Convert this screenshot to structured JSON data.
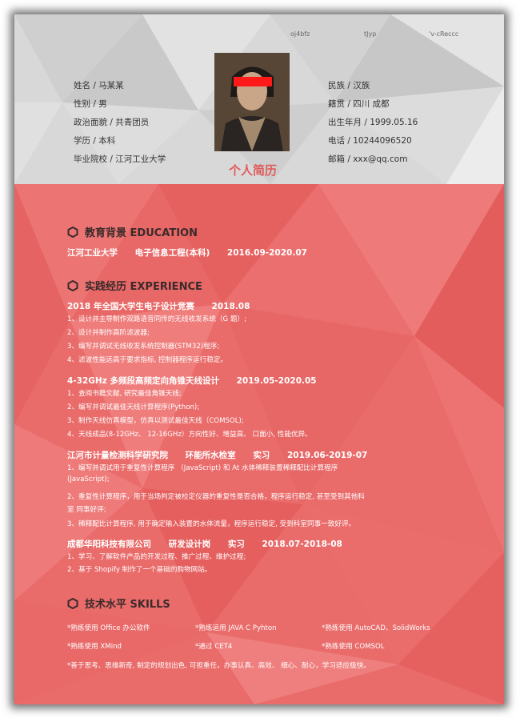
{
  "top_codes": [
    "oj4bfz",
    "tJyp",
    "'v-cReccc"
  ],
  "left_info": [
    "姓名 / 马某某",
    "性别 / 男",
    "政治面貌 / 共青团员",
    "学历 / 本科",
    "毕业院校 / 江河工业大学"
  ],
  "right_info": [
    "民族 / 汉族",
    "籍贯 / 四川 成都",
    "出生年月 / 1999.05.16",
    "电话 / 10244096520",
    "邮箱 / xxx@qq.com"
  ],
  "title": "个人简历",
  "sections": {
    "education": "教育背景 EDUCATION",
    "experience": "实践经历 EXPERIENCE",
    "skills": "技术水平 SKILLS"
  },
  "education": {
    "school": "江河工业大学",
    "major": "电子信息工程(本科)",
    "period": "2016.09-2020.07"
  },
  "exp1": {
    "title": "2018 年全国大学生电子设计竞赛",
    "date": "2018.08",
    "lines": [
      "1、设计并主导制作双路语音同传的无线收发系统（G 题）;",
      "2、设计并制作高阶滤波器;",
      "3、编写并调试无线收发系统控制器(STM32)程序;",
      "4、滤波性能远高于要求指标,    控制器程序运行稳定。"
    ]
  },
  "exp2": {
    "title": "4-32GHz 多频段高频定向角锥天线设计",
    "date": "2019.05-2020.05",
    "lines": [
      "1、查阅书籍文献,    研究最佳角锥天线;",
      "2、编写并调试最佳天线计算程序(Python);",
      "3、制作天线仿真模型，仿真以测试最佳天线（COMSOL);",
      "4、天线成品(8-12GHz、   12-16GHz）方向性好、增益高、    口面小,    性能优异。"
    ]
  },
  "exp3": {
    "org": "江河市计量检测科学研究院",
    "dept": "环能所水检室",
    "role": "实习",
    "date": "2019.06-2019-07",
    "lines": [
      "1、编写并调试用于重复性计算程序  （JavaScript)  和  At 水体稀释装置稀释配比计算程序",
      "     (JavaScript);",
      "2、重复性计算程序，用于当场判定被检定仪器的重复性是否合格，程序运行稳定,    甚至受到其他科",
      "     室 同事好评;",
      "3、稀释配比计算程序,    用于确定输入装置的水体流量，程序运行稳定,    受到科室同事一致好评。"
    ]
  },
  "exp4": {
    "org": "成都华阳科技有限公司",
    "dept": "研发设计岗",
    "role": "实习",
    "date": "2018.07-2018-08",
    "lines": [
      "1、学习、了解软件产品的开发过程、推广过程、维护过程;",
      "2、基于 Shopify 制作了一个基础的购物网站。"
    ]
  },
  "skills": {
    "row1": [
      "*熟练使用 Office 办公软件",
      "*熟练运用 JAVA C Pyhton",
      "*熟练使用 AutoCAD、SolidWorks"
    ],
    "row2": [
      "*熟练使用 XMind",
      "*通过 CET4",
      "*熟练使用 COMSOL"
    ],
    "row3": "*善于思考、思维新奇,    制定的规划出色,    可担重任，办事认真、高效、  细心、耐心，学习适应极快。"
  },
  "colors": {
    "accent": "#e96b6a",
    "header_bg": "#d8d8d8",
    "title_red": "#e05a5a"
  }
}
